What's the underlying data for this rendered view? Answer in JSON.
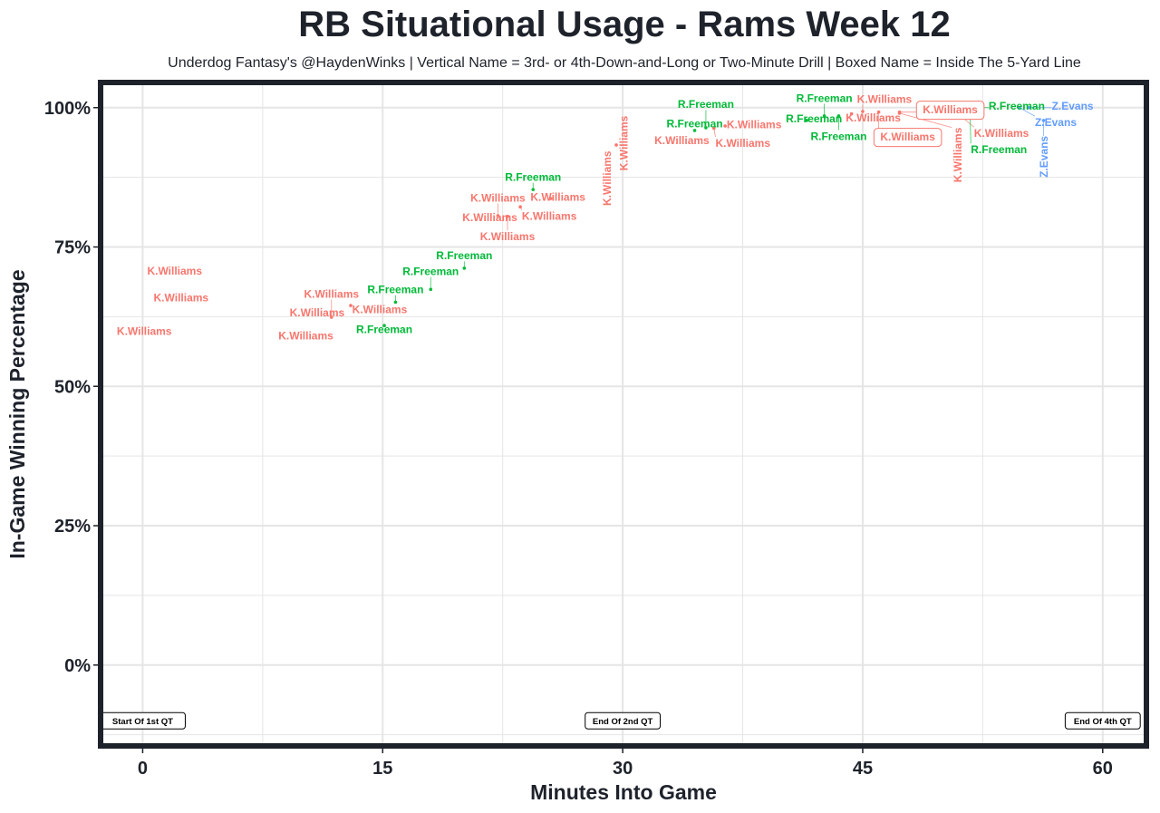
{
  "chart_data": {
    "type": "scatter",
    "title": "RB Situational Usage - Rams Week 12",
    "subtitle": "Underdog Fantasy's @HaydenWinks | Vertical Name = 3rd- or 4th-Down-and-Long or Two-Minute Drill | Boxed Name = Inside The 5-Yard Line",
    "xlabel": "Minutes Into Game",
    "ylabel": "In-Game Winning Percentage",
    "xlim": [
      -2.8,
      62.9
    ],
    "ylim": [
      -15,
      105
    ],
    "x_ticks": [
      0,
      15,
      30,
      45,
      60
    ],
    "x_tick_labels": [
      "0",
      "15",
      "30",
      "45",
      "60"
    ],
    "y_ticks": [
      0,
      25,
      50,
      75,
      100
    ],
    "y_tick_labels": [
      "0%",
      "25%",
      "50%",
      "75%",
      "100%"
    ],
    "grid": true,
    "legend": "none",
    "colors": {
      "K.Williams": "#F8766D",
      "R.Freeman": "#00BA38",
      "Z.Evans": "#619CFF"
    },
    "points": [
      {
        "x": 2.0,
        "y": 70.4,
        "label": "K.Williams"
      },
      {
        "x": 2.4,
        "y": 65.6,
        "label": "K.Williams"
      },
      {
        "x": 0.1,
        "y": 59.6,
        "label": "K.Williams"
      },
      {
        "x": 10.2,
        "y": 58.8,
        "label": "K.Williams"
      },
      {
        "x": 10.9,
        "y": 62.9,
        "label": "K.Williams"
      },
      {
        "x": 11.8,
        "y": 62.4,
        "label": "K.Williams"
      },
      {
        "x": 13.0,
        "y": 64.5,
        "label": "K.Williams"
      },
      {
        "x": 15.1,
        "y": 60.9,
        "label": "R.Freeman"
      },
      {
        "x": 15.8,
        "y": 65.1,
        "label": "R.Freeman"
      },
      {
        "x": 18.0,
        "y": 67.4,
        "label": "R.Freeman"
      },
      {
        "x": 20.1,
        "y": 71.2,
        "label": "R.Freeman"
      },
      {
        "x": 21.7,
        "y": 80.0,
        "label": "K.Williams"
      },
      {
        "x": 22.2,
        "y": 80.6,
        "label": "K.Williams"
      },
      {
        "x": 22.8,
        "y": 80.5,
        "label": "K.Williams"
      },
      {
        "x": 23.6,
        "y": 82.2,
        "label": "K.Williams"
      },
      {
        "x": 25.5,
        "y": 83.7,
        "label": "K.Williams"
      },
      {
        "x": 24.4,
        "y": 85.3,
        "label": "R.Freeman"
      },
      {
        "x": 29.0,
        "y": 87.0,
        "label": "K.Williams",
        "vertical": true
      },
      {
        "x": 29.6,
        "y": 93.3,
        "label": "K.Williams",
        "vertical": true
      },
      {
        "x": 33.7,
        "y": 93.8,
        "label": "K.Williams"
      },
      {
        "x": 34.5,
        "y": 95.9,
        "label": "R.Freeman"
      },
      {
        "x": 35.2,
        "y": 96.4,
        "label": "R.Freeman"
      },
      {
        "x": 35.7,
        "y": 96.3,
        "label": "K.Williams"
      },
      {
        "x": 36.4,
        "y": 96.7,
        "label": "K.Williams"
      },
      {
        "x": 41.5,
        "y": 97.7,
        "label": "R.Freeman"
      },
      {
        "x": 42.6,
        "y": 98.5,
        "label": "R.Freeman"
      },
      {
        "x": 43.5,
        "y": 98.5,
        "label": "R.Freeman"
      },
      {
        "x": 44.3,
        "y": 98.9,
        "label": "K.Williams"
      },
      {
        "x": 45.0,
        "y": 99.3,
        "label": "K.Williams"
      },
      {
        "x": 46.0,
        "y": 99.2,
        "label": "K.Williams",
        "boxed": true
      },
      {
        "x": 47.3,
        "y": 99.2,
        "label": "K.Williams",
        "boxed": true
      },
      {
        "x": 47.3,
        "y": 99.0,
        "label": "K.Williams",
        "vertical": true
      },
      {
        "x": 50.5,
        "y": 100,
        "label": "K.Williams"
      },
      {
        "x": 51.0,
        "y": 100,
        "label": "R.Freeman"
      },
      {
        "x": 51.7,
        "y": 100,
        "label": "R.Freeman"
      },
      {
        "x": 54.8,
        "y": 100,
        "label": "Z.Evans"
      },
      {
        "x": 55.4,
        "y": 100,
        "label": "Z.Evans"
      },
      {
        "x": 56.3,
        "y": 97.7,
        "label": "Z.Evans",
        "vertical": true
      }
    ],
    "annotations": [
      {
        "x": 0,
        "y": -10,
        "text": "Start Of 1st QT"
      },
      {
        "x": 30,
        "y": -10,
        "text": "End Of 2nd QT"
      },
      {
        "x": 60,
        "y": -10,
        "text": "End Of 4th QT"
      }
    ]
  }
}
